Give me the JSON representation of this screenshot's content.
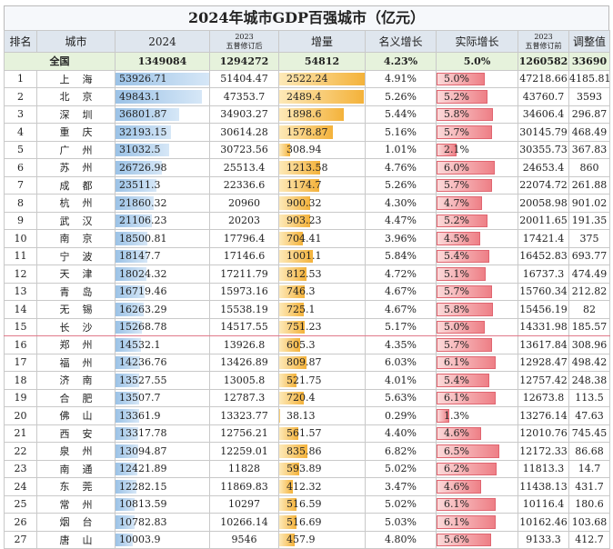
{
  "title": "2024年城市GDP百强城市（亿元）",
  "columns": [
    {
      "text": "排名"
    },
    {
      "text": "城市"
    },
    {
      "text": "2024"
    },
    {
      "top": "2023",
      "sub": "五普修订后"
    },
    {
      "text": "增量"
    },
    {
      "text": "名义增长"
    },
    {
      "text": "实际增长"
    },
    {
      "top": "2023",
      "sub": "五普修订前"
    },
    {
      "text": "调整值"
    }
  ],
  "total": [
    "全国",
    "1349084",
    "1294272",
    "54812",
    "4.23%",
    "5.0%",
    "1260582",
    "33690"
  ],
  "rows": [
    [
      "1",
      "上海",
      "53926.71",
      "51404.47",
      "2522.24",
      "4.91%",
      "5.0%",
      "47218.66",
      "4185.81"
    ],
    [
      "2",
      "北京",
      "49843.1",
      "47353.7",
      "2489.4",
      "5.26%",
      "5.2%",
      "43760.7",
      "3593"
    ],
    [
      "3",
      "深圳",
      "36801.87",
      "34903.27",
      "1898.6",
      "5.44%",
      "5.8%",
      "34606.4",
      "296.87"
    ],
    [
      "4",
      "重庆",
      "32193.15",
      "30614.28",
      "1578.87",
      "5.16%",
      "5.7%",
      "30145.79",
      "468.49"
    ],
    [
      "5",
      "广州",
      "31032.5",
      "30723.56",
      "308.94",
      "1.01%",
      "2.1%",
      "30355.73",
      "367.83"
    ],
    [
      "6",
      "苏州",
      "26726.98",
      "25513.4",
      "1213.58",
      "4.76%",
      "6.0%",
      "24653.4",
      "860"
    ],
    [
      "7",
      "成都",
      "23511.3",
      "22336.6",
      "1174.7",
      "5.26%",
      "5.7%",
      "22074.72",
      "261.88"
    ],
    [
      "8",
      "杭州",
      "21860.32",
      "20960",
      "900.32",
      "4.30%",
      "4.7%",
      "20058.98",
      "901.02"
    ],
    [
      "9",
      "武汉",
      "21106.23",
      "20203",
      "903.23",
      "4.47%",
      "5.2%",
      "20011.65",
      "191.35"
    ],
    [
      "10",
      "南京",
      "18500.81",
      "17796.4",
      "704.41",
      "3.96%",
      "4.5%",
      "17421.4",
      "375"
    ],
    [
      "11",
      "宁波",
      "18147.7",
      "17146.6",
      "1001.1",
      "5.84%",
      "5.4%",
      "16452.83",
      "693.77"
    ],
    [
      "12",
      "天津",
      "18024.32",
      "17211.79",
      "812.53",
      "4.72%",
      "5.1%",
      "16737.3",
      "474.49"
    ],
    [
      "13",
      "青岛",
      "16719.46",
      "15973.16",
      "746.3",
      "4.67%",
      "5.7%",
      "15760.34",
      "212.82"
    ],
    [
      "14",
      "无锡",
      "16263.29",
      "15538.19",
      "725.1",
      "4.67%",
      "5.8%",
      "15456.19",
      "82"
    ],
    [
      "15",
      "长沙",
      "15268.78",
      "14517.55",
      "751.23",
      "5.17%",
      "5.0%",
      "14331.98",
      "185.57"
    ],
    [
      "16",
      "郑州",
      "14532.1",
      "13926.8",
      "605.3",
      "4.35%",
      "5.7%",
      "13617.84",
      "308.96"
    ],
    [
      "17",
      "福州",
      "14236.76",
      "13426.89",
      "809.87",
      "6.03%",
      "6.1%",
      "12928.47",
      "498.42"
    ],
    [
      "18",
      "济南",
      "13527.55",
      "13005.8",
      "521.75",
      "4.01%",
      "5.4%",
      "12757.42",
      "248.38"
    ],
    [
      "19",
      "合肥",
      "13507.7",
      "12787.3",
      "720.4",
      "5.63%",
      "6.1%",
      "12673.8",
      "113.5"
    ],
    [
      "20",
      "佛山",
      "13361.9",
      "13323.77",
      "38.13",
      "0.29%",
      "1.3%",
      "13276.14",
      "47.63"
    ],
    [
      "21",
      "西安",
      "13317.78",
      "12756.21",
      "561.57",
      "4.40%",
      "4.6%",
      "12010.76",
      "745.45"
    ],
    [
      "22",
      "泉州",
      "13094.87",
      "12259.01",
      "835.86",
      "6.82%",
      "6.5%",
      "12172.33",
      "86.68"
    ],
    [
      "23",
      "南通",
      "12421.89",
      "11828",
      "593.89",
      "5.02%",
      "6.2%",
      "11813.3",
      "14.7"
    ],
    [
      "24",
      "东莞",
      "12282.15",
      "11869.83",
      "412.32",
      "3.47%",
      "4.6%",
      "11438.13",
      "431.7"
    ],
    [
      "25",
      "常州",
      "10813.59",
      "10297",
      "516.59",
      "5.02%",
      "6.1%",
      "10116.4",
      "180.6"
    ],
    [
      "26",
      "烟台",
      "10782.83",
      "10266.14",
      "516.69",
      "5.03%",
      "6.1%",
      "10162.46",
      "103.68"
    ],
    [
      "27",
      "唐山",
      "10003.9",
      "9546",
      "457.9",
      "4.80%",
      "5.6%",
      "9133.3",
      "412.7"
    ]
  ]
}
